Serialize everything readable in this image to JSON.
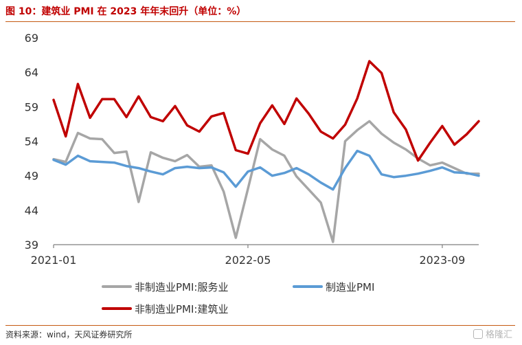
{
  "title": "图 10：建筑业 PMI 在 2023 年年末回升（单位：%）",
  "source": "资料来源：wind，天风证券研究所",
  "watermark": "格隆汇",
  "colors": {
    "title": "#c00000",
    "rule": "#c55a11",
    "services": "#a6a6a6",
    "manufacturing": "#5b9bd5",
    "construction": "#c00000"
  },
  "chart_data": {
    "type": "line",
    "x_tick_labels": [
      "2021-01",
      "2022-05",
      "2023-09"
    ],
    "x_tick_index": [
      0,
      16,
      32
    ],
    "ylim": [
      39,
      69
    ],
    "yticks": [
      39,
      44,
      49,
      54,
      59,
      64,
      69
    ],
    "grid": false,
    "legend_position": "bottom",
    "n_points": 36,
    "series": [
      {
        "name": "非制造业PMI:服务业",
        "color_key": "services",
        "values": [
          51.4,
          51.0,
          55.2,
          54.4,
          54.3,
          52.3,
          52.5,
          45.2,
          52.4,
          51.6,
          51.1,
          52.0,
          50.3,
          50.5,
          46.7,
          40.0,
          47.1,
          54.3,
          52.8,
          51.9,
          48.9,
          47.0,
          45.1,
          39.4,
          54.0,
          55.6,
          56.9,
          55.1,
          53.8,
          52.8,
          51.5,
          50.5,
          50.9,
          50.1,
          49.3,
          49.3
        ]
      },
      {
        "name": "制造业PMI",
        "color_key": "manufacturing",
        "values": [
          51.3,
          50.6,
          51.9,
          51.1,
          51.0,
          50.9,
          50.4,
          50.1,
          49.6,
          49.2,
          50.1,
          50.3,
          50.1,
          50.2,
          49.5,
          47.4,
          49.6,
          50.2,
          49.0,
          49.4,
          50.1,
          49.2,
          48.0,
          47.0,
          50.1,
          52.6,
          51.9,
          49.2,
          48.8,
          49.0,
          49.3,
          49.7,
          50.2,
          49.5,
          49.4,
          49.0
        ]
      },
      {
        "name": "非制造业PMI:建筑业",
        "color_key": "construction",
        "values": [
          60.0,
          54.7,
          62.3,
          57.4,
          60.1,
          60.1,
          57.5,
          60.5,
          57.5,
          56.9,
          59.1,
          56.3,
          55.4,
          57.6,
          58.1,
          52.7,
          52.2,
          56.6,
          59.2,
          56.5,
          60.2,
          58.0,
          55.4,
          54.4,
          56.4,
          60.2,
          65.6,
          63.9,
          58.2,
          55.7,
          51.2,
          53.8,
          56.2,
          53.5,
          55.0,
          56.9
        ]
      }
    ]
  }
}
